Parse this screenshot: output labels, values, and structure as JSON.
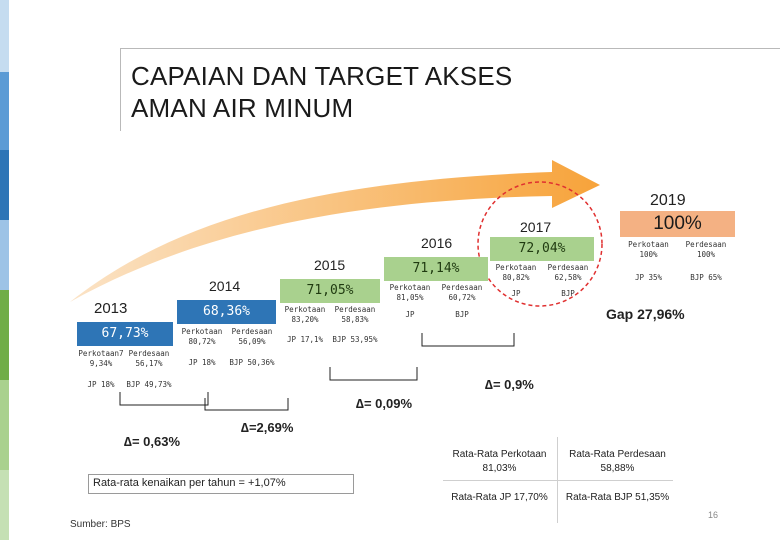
{
  "title": "CAPAIAN DAN TARGET  AKSES AMAN AIR MINUM",
  "years": {
    "y2013": {
      "year": "2013",
      "total": "67,73%",
      "perkotaan": "Perkotaan7 9,34%",
      "perdesaan": "Perdesaan 56,17%",
      "jp": "JP 18%",
      "bjp": "BJP 49,73%"
    },
    "y2014": {
      "year": "2014",
      "total": "68,36%",
      "perkotaan": "Perkotaan 80,72%",
      "perdesaan": "Perdesaan 56,09%",
      "jp": "JP 18%",
      "bjp": "BJP 50,36%"
    },
    "y2015": {
      "year": "2015",
      "total": "71,05%",
      "perkotaan": "Perkotaan 83,20%",
      "perdesaan": "Perdesaan 58,83%",
      "jp": "JP 17,1%",
      "bjp": "BJP 53,95%"
    },
    "y2016": {
      "year": "2016",
      "total": "71,14%",
      "perkotaan": "Perkotaan 81,05%",
      "perdesaan": "Perdesaan 60,72%",
      "jp": "JP",
      "bjp": "BJP"
    },
    "y2017": {
      "year": "2017",
      "total": "72,04%",
      "perkotaan": "Perkotaan 80,82%",
      "perdesaan": "Perdesaan 62,58%",
      "jp": "JP",
      "bjp": "BJP"
    },
    "y2019": {
      "year": "2019",
      "total": "100%",
      "perkotaan": "Perkotaan 100%",
      "perdesaan": "Perdesaan 100%",
      "jp": "JP 35%",
      "bjp": "BJP 65%"
    }
  },
  "gap": "Gap 27,96%",
  "deltas": {
    "d1": "∆= 0,63%",
    "d2": "∆=2,69%",
    "d3": "∆= 0,09%",
    "d4": "∆= 0,9%"
  },
  "averages": {
    "perkotaan": "Rata-Rata Perkotaan 81,03%",
    "perdesaan": "Rata-Rata Perdesaan 58,88%",
    "jp": "Rata-Rata JP 17,70%",
    "bjp": "Rata-Rata BJP 51,35%"
  },
  "annual_rate": "Rata-rata kenaikan per tahun = +1,07%",
  "source": "Sumber: BPS",
  "page_number": "16",
  "colors": {
    "blue": "#2e75b6",
    "green": "#a9d18e",
    "orange": "#f4b183",
    "arrow": "#f7a33a"
  }
}
